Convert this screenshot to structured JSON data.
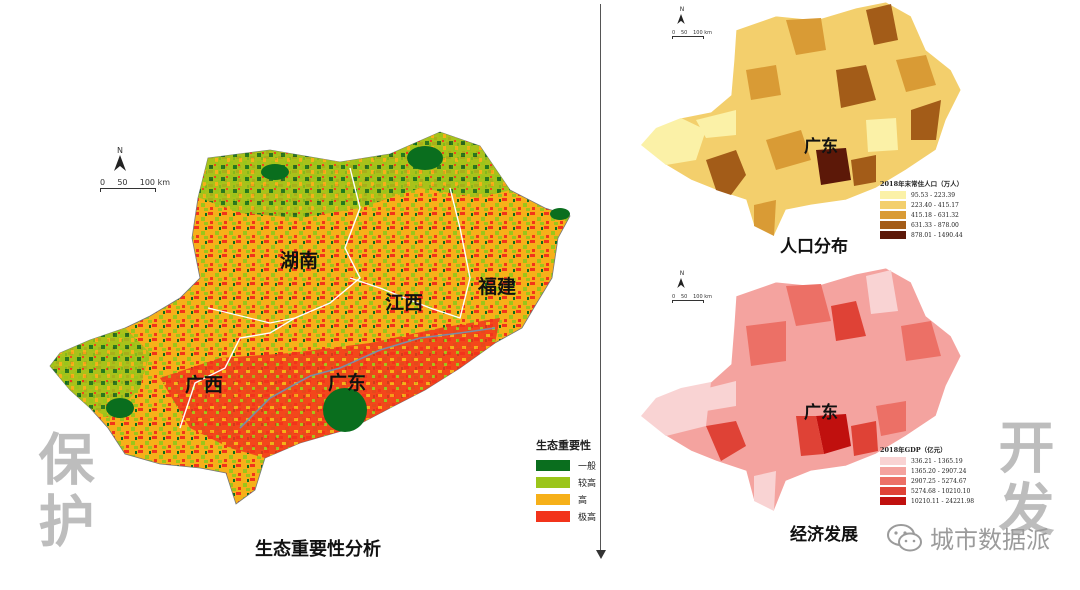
{
  "left_panel": {
    "title": "生态重要性分析",
    "side_label": "保护",
    "region_labels": {
      "hunan": "湖南",
      "jiangxi": "江西",
      "fujian": "福建",
      "guangxi": "广西",
      "guangdong": "广东"
    },
    "legend": {
      "title": "生态重要性",
      "items": [
        {
          "label": "一般",
          "color": "#0a6e1e"
        },
        {
          "label": "较高",
          "color": "#9bc51a"
        },
        {
          "label": "高",
          "color": "#f6b019"
        },
        {
          "label": "极高",
          "color": "#f2341b"
        }
      ]
    },
    "scale": {
      "zero": "0",
      "mid": "50",
      "end": "100 km"
    },
    "north": "N"
  },
  "right_top": {
    "title": "人口分布",
    "region_label": "广东",
    "legend": {
      "title": "2018年末常住人口（万人）",
      "items": [
        {
          "label": "95.53 - 223.39",
          "color": "#fbf1a7"
        },
        {
          "label": "223.40 - 415.17",
          "color": "#f3cf6c"
        },
        {
          "label": "415.18 - 631.32",
          "color": "#d99b35"
        },
        {
          "label": "631.33 - 878.00",
          "color": "#a35c18"
        },
        {
          "label": "878.01 - 1490.44",
          "color": "#5c1808"
        }
      ]
    },
    "scale": {
      "zero": "0",
      "mid": "50",
      "end": "100 km"
    },
    "north": "N"
  },
  "right_bottom": {
    "title": "经济发展",
    "region_label": "广东",
    "legend": {
      "title": "2018年GDP（亿元）",
      "items": [
        {
          "label": "336.21 - 1365.19",
          "color": "#f9d3d3"
        },
        {
          "label": "1365.20 - 2907.24",
          "color": "#f4a39f"
        },
        {
          "label": "2907.25 - 5274.67",
          "color": "#ec7066"
        },
        {
          "label": "5274.68 - 10210.10",
          "color": "#df4236"
        },
        {
          "label": "10210.11 - 24221.98",
          "color": "#c0100e"
        }
      ]
    },
    "scale": {
      "zero": "0",
      "mid": "50",
      "end": "100 km"
    },
    "north": "N"
  },
  "right_side_label": "开发",
  "watermark": "城市数据派"
}
